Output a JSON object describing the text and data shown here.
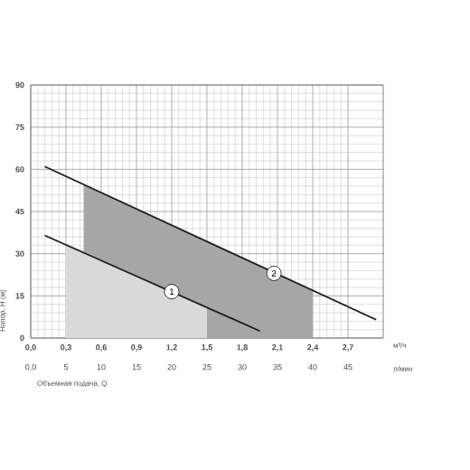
{
  "chart_data": {
    "type": "line",
    "xlabel": "Объемная подача, Q",
    "ylabel": "Напор, H (м)",
    "x2label": "м³/ч",
    "xlim": [
      0,
      50
    ],
    "xticks": [
      {
        "value": 0,
        "label": "0,0"
      },
      5,
      10,
      15,
      20,
      25,
      30,
      35,
      40,
      45
    ],
    "x2lim": [
      0,
      3.0
    ],
    "x2ticks": [
      {
        "value": 0,
        "label": "0,0"
      },
      {
        "value": 0.3,
        "label": "0,3"
      },
      {
        "value": 0.6,
        "label": "0,6"
      },
      {
        "value": 0.9,
        "label": "0,9"
      },
      {
        "value": 1.2,
        "label": "1,2"
      },
      {
        "value": 1.5,
        "label": "1,5"
      },
      {
        "value": 1.8,
        "label": "1,8"
      },
      {
        "value": 2.1,
        "label": "2,1"
      },
      {
        "value": 2.4,
        "label": "2,4"
      },
      {
        "value": 2.7,
        "label": "2,7"
      }
    ],
    "ylim": [
      0,
      90
    ],
    "yticks": [
      0,
      15,
      30,
      45,
      60,
      75,
      90
    ],
    "grid": true,
    "series": [
      {
        "type": "area",
        "color": "#a6a6a6",
        "x": [
          7.5,
          40
        ],
        "values": [
          54.5,
          17
        ]
      },
      {
        "type": "area",
        "color": "#d9d9d9",
        "x": [
          5,
          25
        ],
        "values": [
          33.5,
          11
        ]
      },
      {
        "color": "#1a1a1a",
        "x": [
          2,
          32.5
        ],
        "values": [
          36.5,
          2.5
        ]
      },
      {
        "color": "#1a1a1a",
        "x": [
          2,
          49
        ],
        "values": [
          61,
          6.5
        ]
      }
    ],
    "annotations": [
      {
        "text": "1",
        "x": 20,
        "y": 16.5
      },
      {
        "text": "2",
        "x": 34.5,
        "y": 23
      },
      "л/мин"
    ]
  }
}
